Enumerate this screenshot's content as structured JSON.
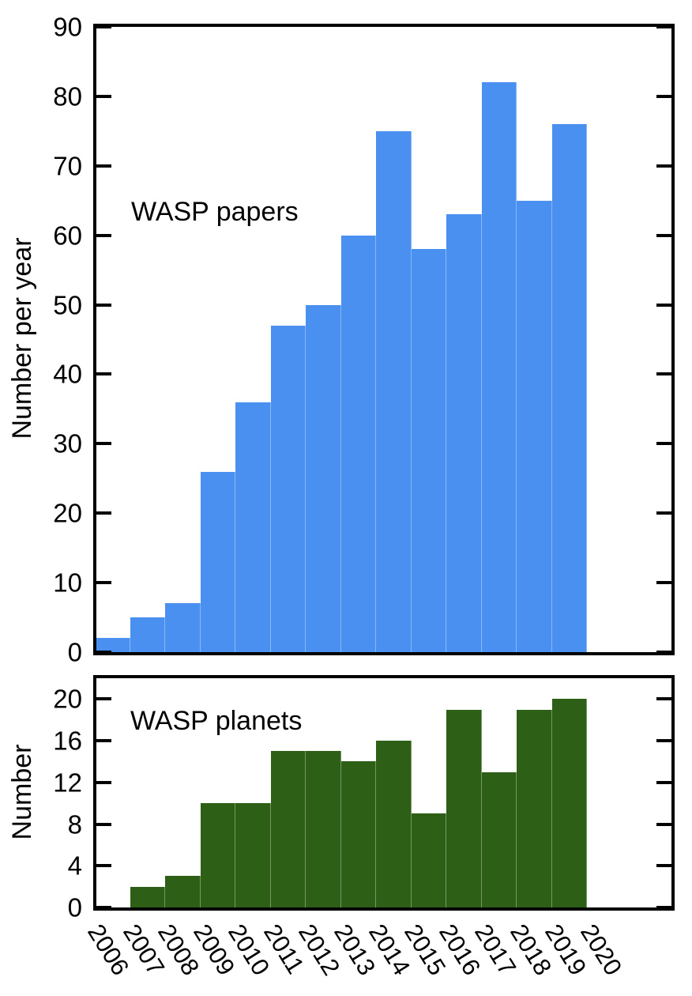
{
  "chart_data": [
    {
      "type": "bar",
      "title": "WASP papers",
      "ylabel": "Number per year",
      "categories": [
        2006,
        2007,
        2008,
        2009,
        2010,
        2011,
        2012,
        2013,
        2014,
        2015,
        2016,
        2017,
        2018,
        2019
      ],
      "values": [
        2,
        5,
        7,
        26,
        36,
        47,
        50,
        60,
        75,
        58,
        63,
        82,
        65,
        76
      ],
      "ylim": [
        0,
        90
      ],
      "yticks": [
        0,
        10,
        20,
        30,
        40,
        50,
        60,
        70,
        80,
        90
      ],
      "bar_color": "#4a90f0",
      "grid": "off",
      "legend": "none"
    },
    {
      "type": "bar",
      "title": "WASP planets",
      "ylabel": "Number",
      "categories": [
        2006,
        2007,
        2008,
        2009,
        2010,
        2011,
        2012,
        2013,
        2014,
        2015,
        2016,
        2017,
        2018,
        2019
      ],
      "values": [
        0,
        2,
        3,
        10,
        10,
        15,
        15,
        14,
        16,
        9,
        19,
        13,
        19,
        20
      ],
      "ylim": [
        0,
        22
      ],
      "yticks": [
        0,
        4,
        8,
        12,
        16,
        20
      ],
      "bar_color": "#2d6016",
      "grid": "off",
      "legend": "none"
    }
  ],
  "x_axis": {
    "tick_labels": [
      "2006",
      "2007",
      "2008",
      "2009",
      "2010",
      "2011",
      "2012",
      "2013",
      "2014",
      "2015",
      "2016",
      "2017",
      "2018",
      "2019",
      "2020"
    ]
  },
  "axis_color": "#000000",
  "background_color": "#ffffff"
}
